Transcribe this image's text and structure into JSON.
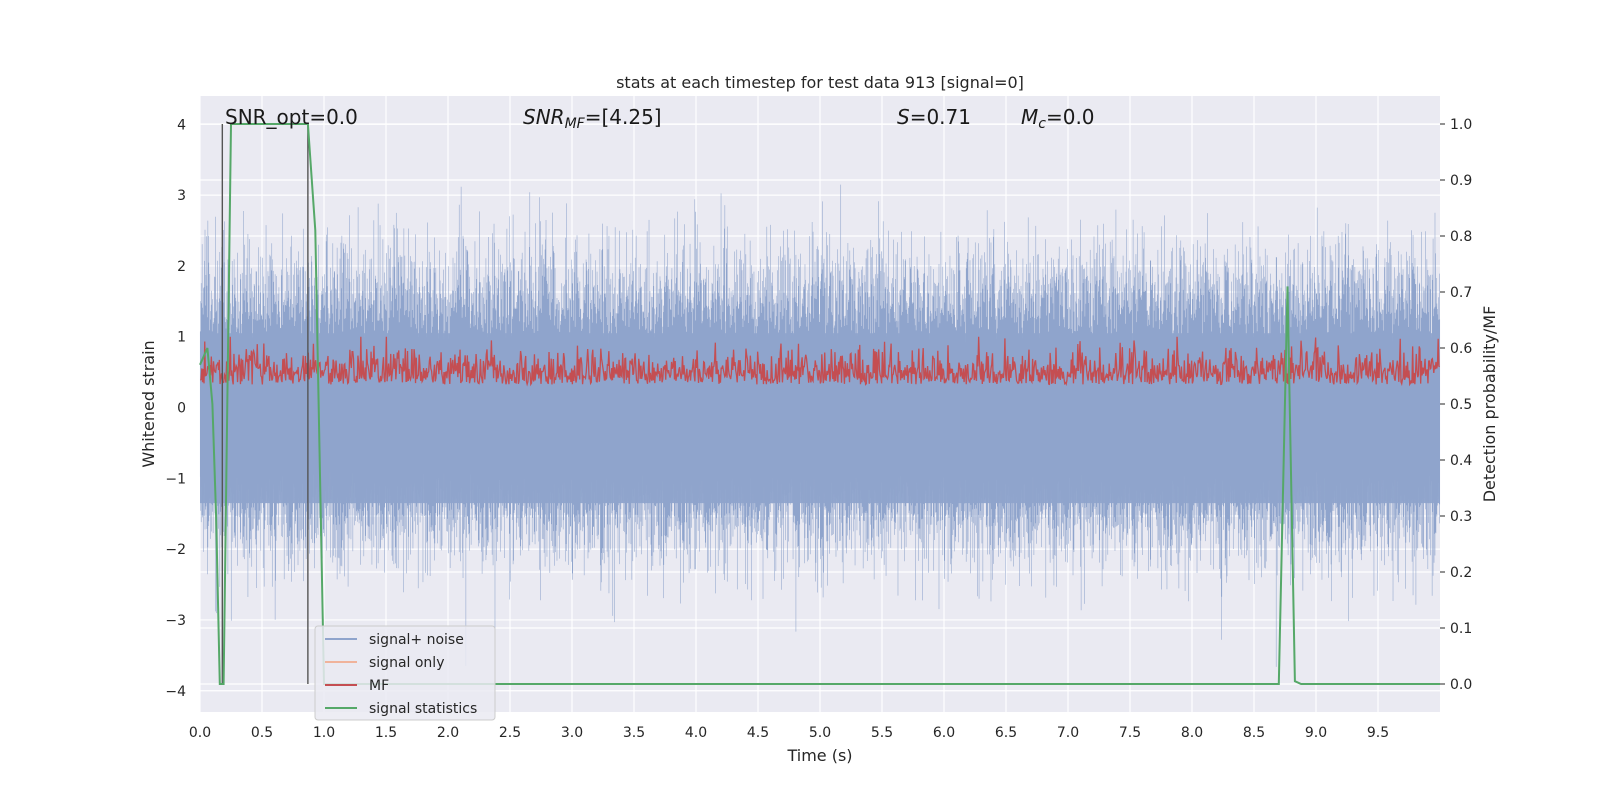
{
  "chart_data": {
    "type": "line",
    "title": "stats at each timestep for test data 913 [signal=0]",
    "xlabel": "Time (s)",
    "ylabel_left": "Whitened strain",
    "ylabel_right": "Detection probability/MF",
    "xlim": [
      0,
      10
    ],
    "ylim_left": [
      -4.3,
      4.4
    ],
    "ylim_right": [
      -0.05,
      1.05
    ],
    "x_ticks": [
      "0.0",
      "0.5",
      "1.0",
      "1.5",
      "2.0",
      "2.5",
      "3.0",
      "3.5",
      "4.0",
      "4.5",
      "5.0",
      "5.5",
      "6.0",
      "6.5",
      "7.0",
      "7.5",
      "8.0",
      "8.5",
      "9.0",
      "9.5"
    ],
    "y_ticks_left": [
      "4",
      "3",
      "2",
      "1",
      "0",
      "−1",
      "−2",
      "−3",
      "−4"
    ],
    "y_ticks_right": [
      "1.0",
      "0.9",
      "0.8",
      "0.7",
      "0.6",
      "0.5",
      "0.4",
      "0.3",
      "0.2",
      "0.1",
      "0.0"
    ],
    "grid": true,
    "legend_placement": "lower-left",
    "annotations": {
      "snr_opt": "SNR_opt=0.0",
      "snr_mf_name": "SNR",
      "snr_mf_sub": "MF",
      "snr_mf_value": "=[4.25]",
      "s_name": "S",
      "s_value": "=0.71",
      "mc_name": "M",
      "mc_sub": "c",
      "mc_value": "=0.0"
    },
    "vertical_lines_x": [
      0.18,
      0.87
    ],
    "series": [
      {
        "name": "signal+ noise",
        "color": "#8fa4cc",
        "axis": "left",
        "amplitude_range": [
          -3.8,
          4.0
        ]
      },
      {
        "name": "signal only",
        "color": "#f0b39b",
        "axis": "left",
        "values": []
      },
      {
        "name": "MF",
        "color": "#c44e52",
        "axis": "right",
        "range": [
          0.5,
          0.62
        ]
      },
      {
        "name": "signal statistics",
        "color": "#55a868",
        "axis": "right",
        "x": [
          0.0,
          0.06,
          0.1,
          0.13,
          0.16,
          0.19,
          0.22,
          0.25,
          0.3,
          0.5,
          0.7,
          0.87,
          0.93,
          1.0,
          1.1,
          2.0,
          5.0,
          8.0,
          8.7,
          8.77,
          8.83,
          8.88,
          9.5,
          10.0
        ],
        "y": [
          0.57,
          0.6,
          0.5,
          0.3,
          0.0,
          0.0,
          0.5,
          1.0,
          1.0,
          1.0,
          1.0,
          1.0,
          0.81,
          0.0,
          0.0,
          0.0,
          0.0,
          0.0,
          0.0,
          0.71,
          0.005,
          0.0,
          0.0,
          0.0
        ]
      }
    ]
  }
}
